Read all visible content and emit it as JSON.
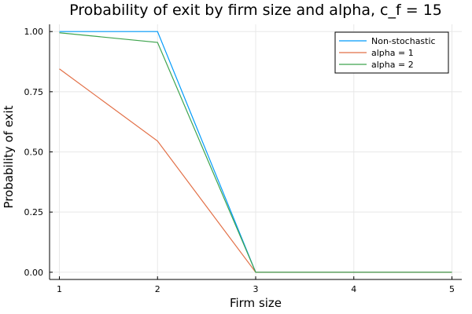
{
  "chart_data": {
    "type": "line",
    "title": "Probability of exit by firm size and alpha, c_f = 15",
    "xlabel": "Firm size",
    "ylabel": "Probability of exit",
    "x": [
      1,
      2,
      3,
      4,
      5
    ],
    "xlim": [
      0.9,
      5.1
    ],
    "ylim": [
      -0.03,
      1.03
    ],
    "xticks": [
      1,
      2,
      3,
      4,
      5
    ],
    "yticks": [
      0.0,
      0.25,
      0.5,
      0.75,
      1.0
    ],
    "ytick_labels": [
      "0.00",
      "0.25",
      "0.50",
      "0.75",
      "1.00"
    ],
    "grid": true,
    "legend_position": "top-right",
    "series": [
      {
        "name": "Non-stochastic",
        "color": "#009AFA",
        "values": [
          1.0,
          1.0,
          0.0,
          0.0,
          0.0
        ]
      },
      {
        "name": "alpha = 1",
        "color": "#E26F46",
        "values": [
          0.845,
          0.545,
          0.0,
          0.0,
          0.0
        ]
      },
      {
        "name": "alpha = 2",
        "color": "#3EA44E",
        "values": [
          0.995,
          0.955,
          0.0,
          0.0,
          0.0
        ]
      }
    ]
  }
}
